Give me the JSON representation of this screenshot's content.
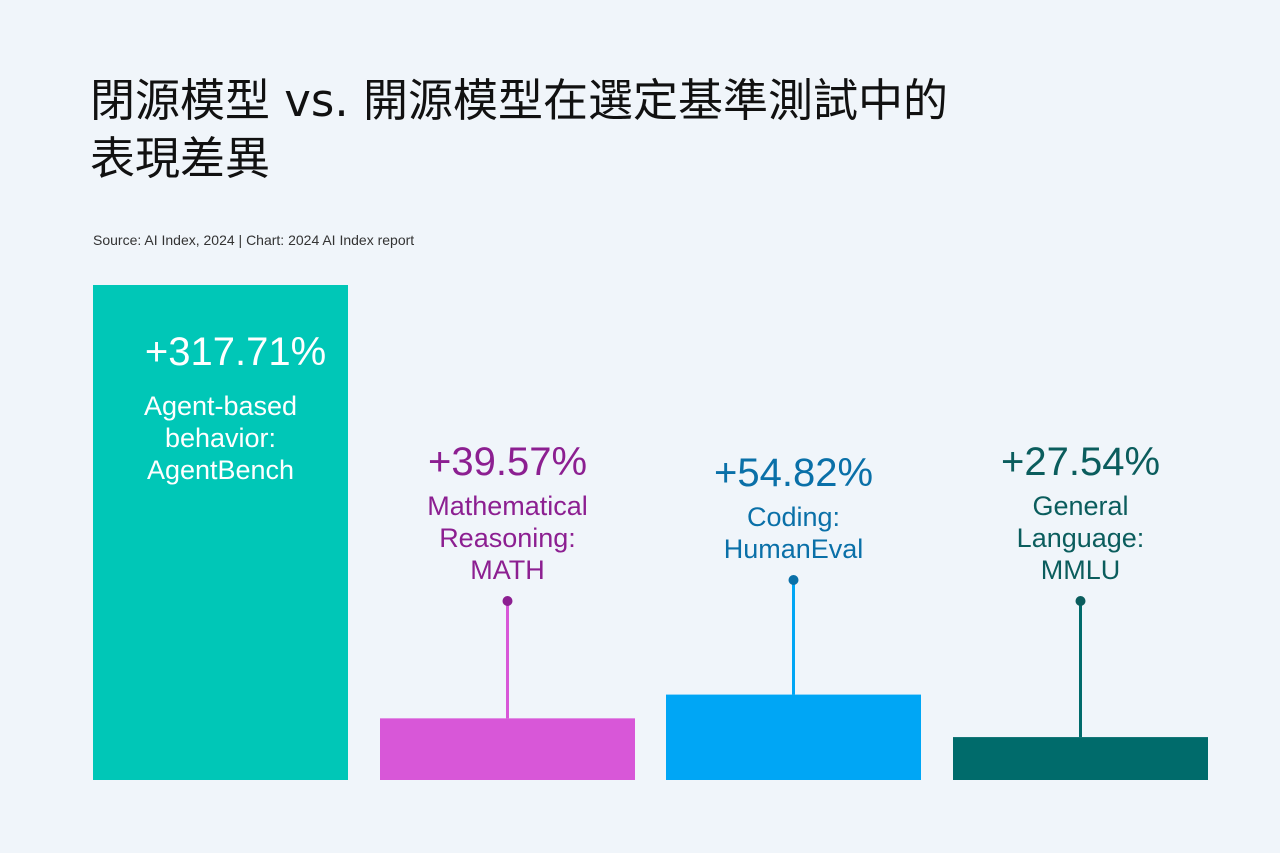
{
  "title": "閉源模型 vs. 開源模型在選定基準測試中的表現差異",
  "source": "Source: AI Index, 2024 | Chart: 2024 AI Index report",
  "chart_data": {
    "type": "bar",
    "categories": [
      "Agent-based behavior: AgentBench",
      "Mathematical Reasoning: MATH",
      "Coding: HumanEval",
      "General Language: MMLU"
    ],
    "category_lines": [
      [
        "Agent-based",
        "behavior:",
        "AgentBench"
      ],
      [
        "Mathematical",
        "Reasoning:",
        "MATH"
      ],
      [
        "Coding:",
        "HumanEval"
      ],
      [
        "General",
        "Language:",
        "MMLU"
      ]
    ],
    "values": [
      317.71,
      39.57,
      54.82,
      27.54
    ],
    "value_labels": [
      "+317.71%",
      "+39.57%",
      "+54.82%",
      "+27.54%"
    ],
    "colors": [
      "#00c7b7",
      "#d857d8",
      "#00a6f5",
      "#006b6b"
    ],
    "label_colors": [
      "#ffffff",
      "#8c1f91",
      "#0a70a8",
      "#0b5d5d"
    ],
    "ylim": [
      0,
      317.71
    ],
    "grid": false,
    "legend": "none"
  }
}
